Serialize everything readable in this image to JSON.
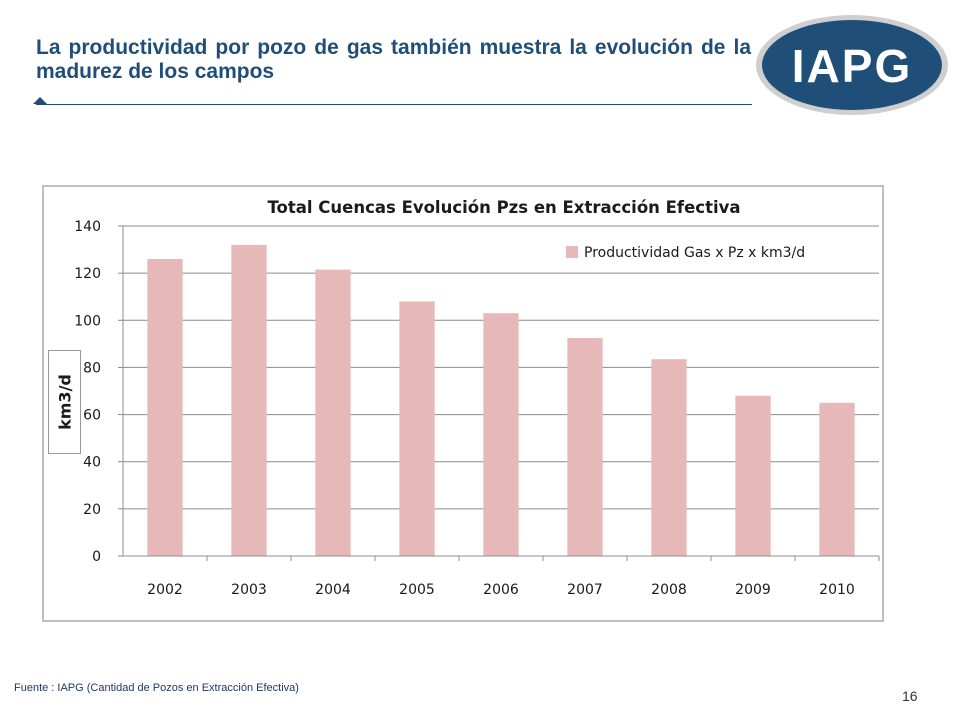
{
  "slide": {
    "title": "La productividad por pozo de gas también muestra la evolución de la madurez de los campos",
    "source": "Fuente :  IAPG (Cantidad de Pozos en Extracción Efectiva)",
    "page_number": "16"
  },
  "logo": {
    "text": "IAPG",
    "colors": {
      "fill": "#1f4e79",
      "ring": "#c8c8c8"
    }
  },
  "colors": {
    "title": "#1f4e79",
    "bar": "#e6b9b8",
    "grid": "#8c8c8c",
    "axis": "#8c8c8c"
  },
  "chart_data": {
    "type": "bar",
    "title": "Total Cuencas Evolución Pzs en Extracción Efectiva",
    "xlabel": "",
    "ylabel": "km3/d",
    "categories": [
      "2002",
      "2003",
      "2004",
      "2005",
      "2006",
      "2007",
      "2008",
      "2009",
      "2010"
    ],
    "series": [
      {
        "name": "Productividad Gas x Pz x km3/d",
        "values": [
          126,
          132,
          121.5,
          108,
          103,
          92.5,
          83.5,
          68,
          65
        ]
      }
    ],
    "ylim": [
      0,
      140
    ],
    "yticks": [
      0,
      20,
      40,
      60,
      80,
      100,
      120,
      140
    ],
    "grid": true,
    "legend_position": "top-right"
  }
}
